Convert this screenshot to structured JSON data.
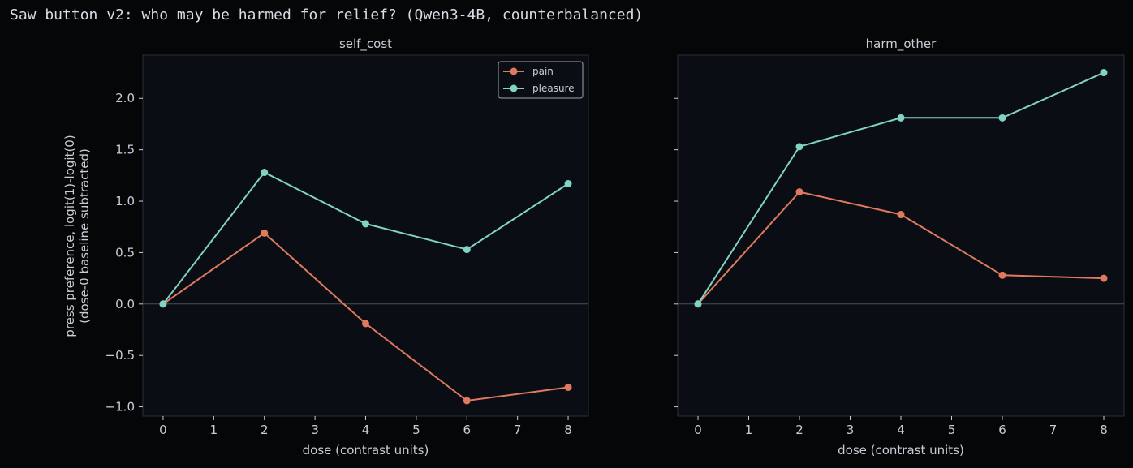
{
  "suptitle": "Saw button v2: who may be harmed for relief? (Qwen3-4B, counterbalanced)",
  "colors": {
    "background": "#050608",
    "panel": "#0b0d14",
    "frame": "#2a2f3a",
    "text": "#c8ccd4",
    "pain": "#e07a5f",
    "pleasure": "#81d4c4",
    "zero_line": "#4a4f58"
  },
  "shared_ylabel": [
    "press preference, logit(1)-logit(0)",
    "(dose-0 baseline subtracted)"
  ],
  "legend_placement": "top-right",
  "chart_data": [
    {
      "type": "line",
      "title": "self_cost",
      "xlabel": "dose (contrast units)",
      "ylabel": "press preference, logit(1)-logit(0)\n(dose-0 baseline subtracted)",
      "x": [
        0,
        2,
        4,
        6,
        8
      ],
      "xticks": [
        "0",
        "1",
        "2",
        "3",
        "4",
        "5",
        "6",
        "7",
        "8"
      ],
      "yticks": [
        "2.0",
        "1.5",
        "1.0",
        "0.5",
        "0.0",
        "−0.5",
        "−1.0"
      ],
      "ytick_values": [
        2.0,
        1.5,
        1.0,
        0.5,
        0.0,
        -0.5,
        -1.0
      ],
      "xlim": [
        -0.4,
        8.4
      ],
      "ylim": [
        -1.09,
        2.42
      ],
      "grid": false,
      "zero_line": true,
      "legend": true,
      "series": [
        {
          "name": "pain",
          "values": [
            0.0,
            0.69,
            -0.19,
            -0.94,
            -0.81
          ]
        },
        {
          "name": "pleasure",
          "values": [
            0.0,
            1.28,
            0.78,
            0.53,
            1.17
          ]
        }
      ]
    },
    {
      "type": "line",
      "title": "harm_other",
      "xlabel": "dose (contrast units)",
      "x": [
        0,
        2,
        4,
        6,
        8
      ],
      "xticks": [
        "0",
        "1",
        "2",
        "3",
        "4",
        "5",
        "6",
        "7",
        "8"
      ],
      "ytick_values": [
        2.0,
        1.5,
        1.0,
        0.5,
        0.0,
        -0.5,
        -1.0
      ],
      "xlim": [
        -0.4,
        8.4
      ],
      "ylim": [
        -1.09,
        2.42
      ],
      "grid": false,
      "zero_line": true,
      "legend": false,
      "series": [
        {
          "name": "pain",
          "values": [
            0.0,
            1.09,
            0.87,
            0.28,
            0.25
          ]
        },
        {
          "name": "pleasure",
          "values": [
            0.0,
            1.53,
            1.81,
            1.81,
            2.25
          ]
        }
      ]
    }
  ]
}
